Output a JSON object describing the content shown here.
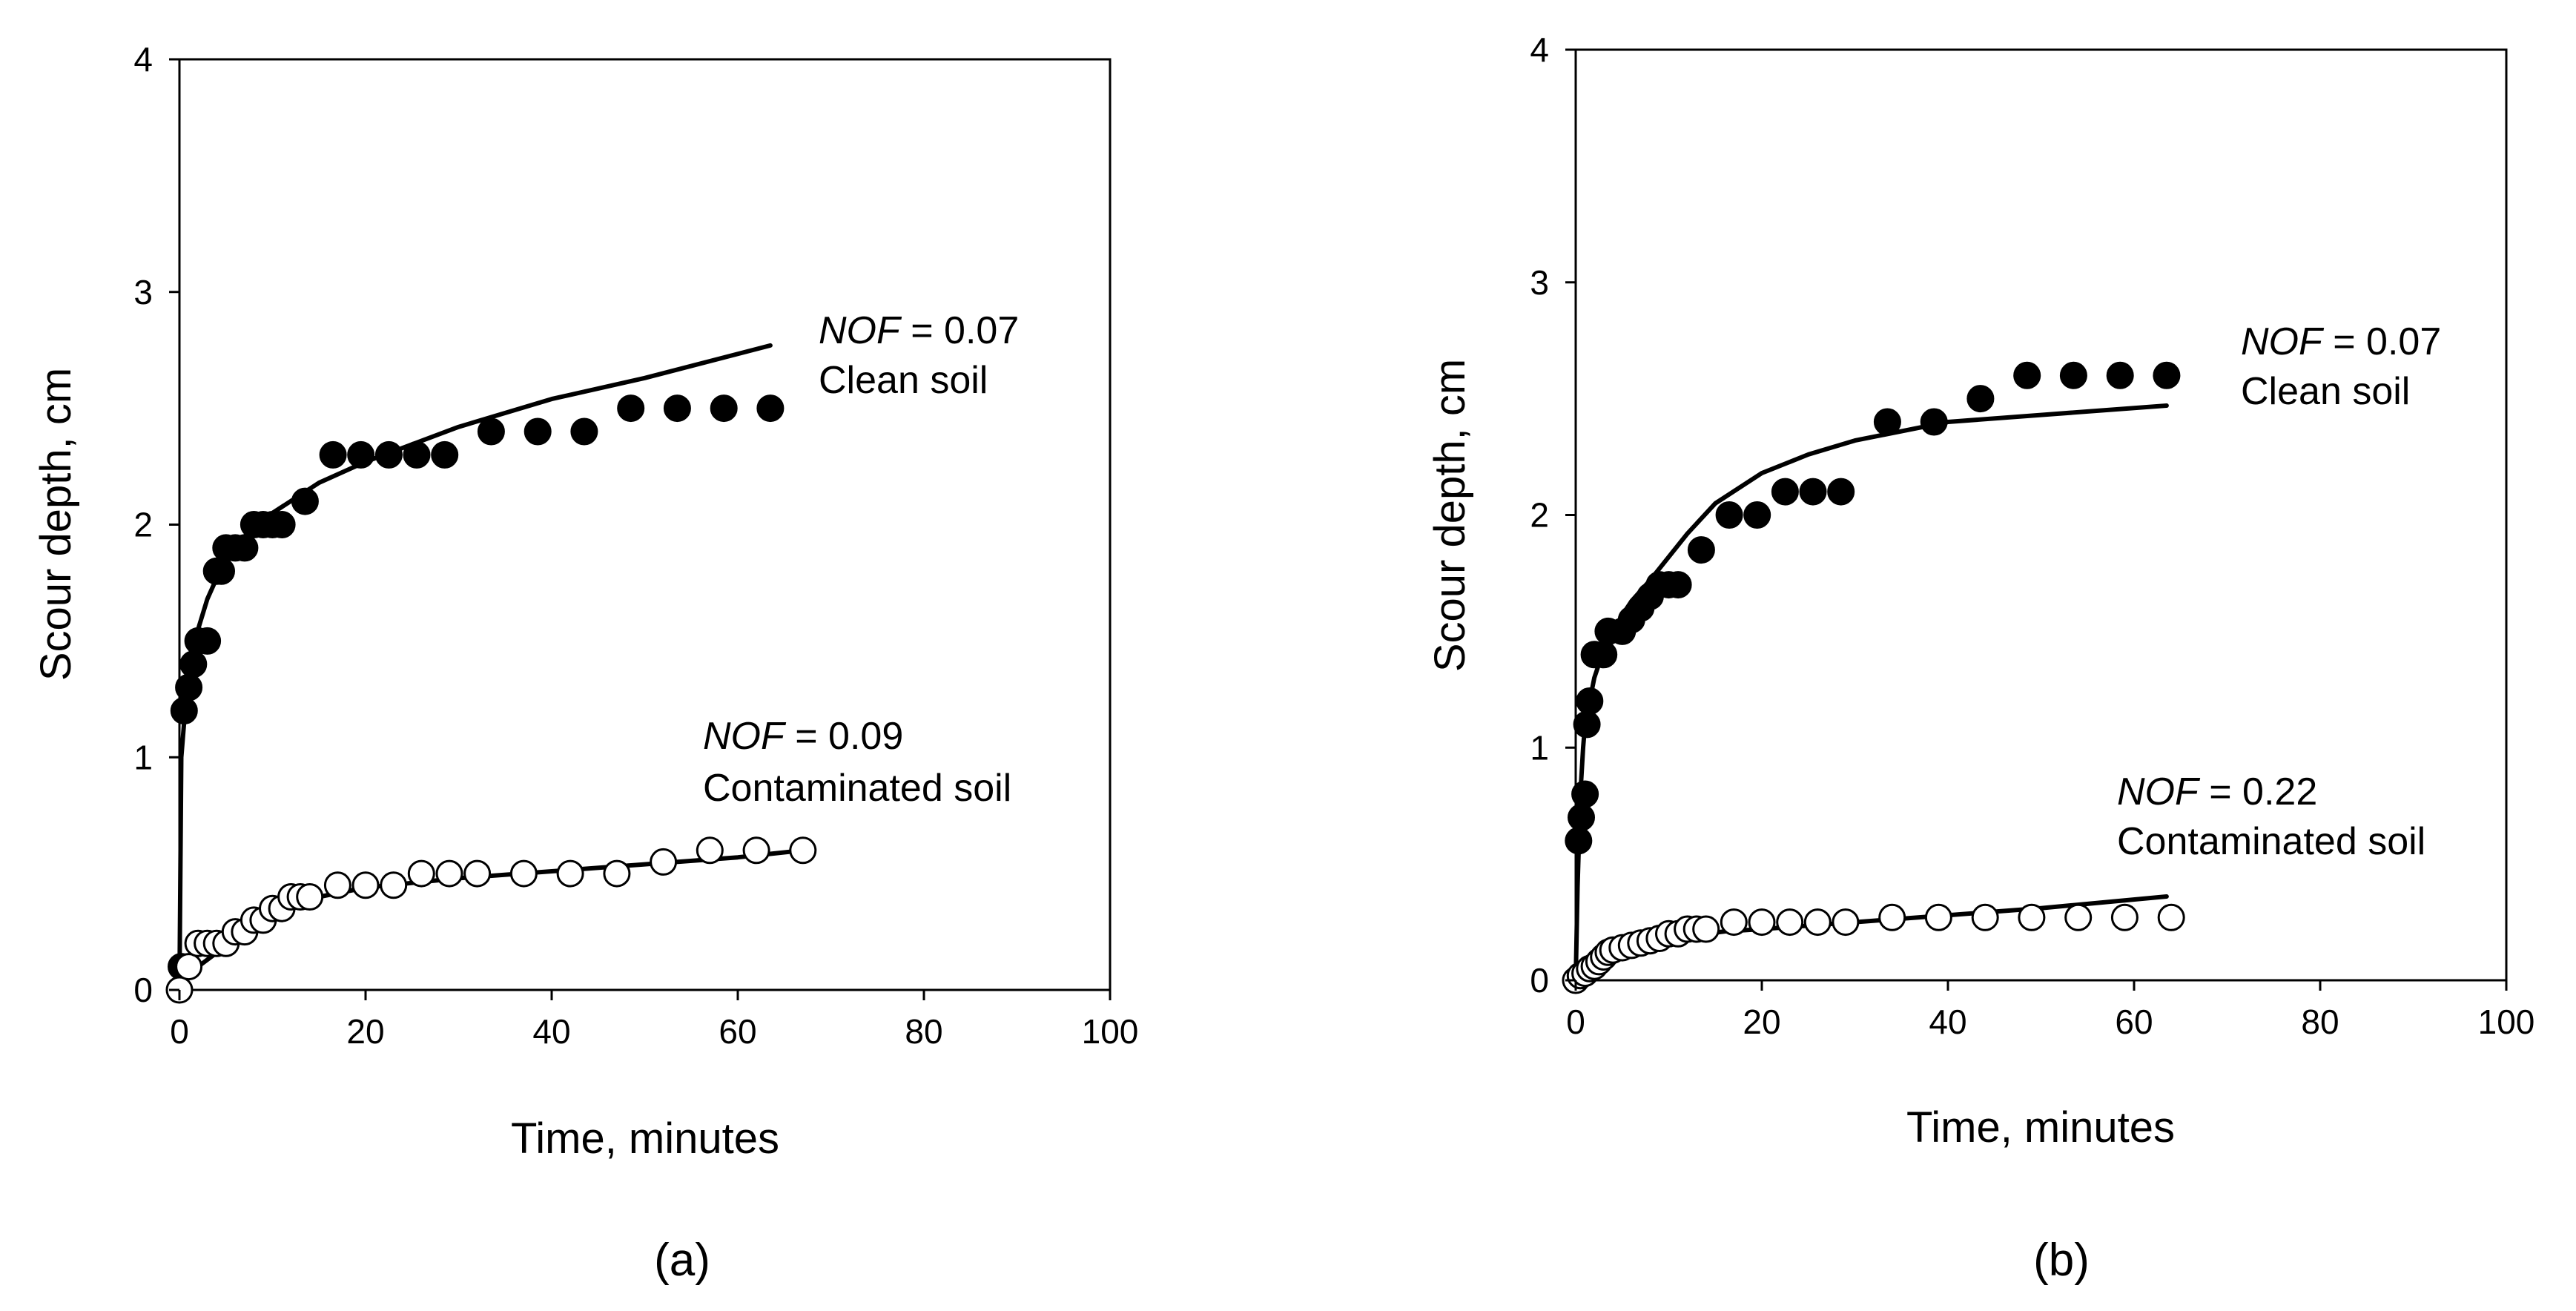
{
  "chart_data": [
    {
      "type": "scatter",
      "panel_label": "(a)",
      "xlabel": "Time, minutes",
      "ylabel": "Scour depth, cm",
      "xlim": [
        0,
        100
      ],
      "ylim": [
        0,
        4
      ],
      "xticks": [
        "0",
        "20",
        "40",
        "60",
        "80",
        "100"
      ],
      "yticks": [
        "0",
        "1",
        "2",
        "3",
        "4"
      ],
      "grid": false,
      "annotations": [
        {
          "nof_label": "NOF",
          "nof_value": " = 0.07",
          "soil": "Clean soil"
        },
        {
          "nof_label": "NOF",
          "nof_value": " = 0.09",
          "soil": "Contaminated soil"
        }
      ],
      "series": [
        {
          "marker": "filled-circle",
          "x": [
            0.2,
            0.5,
            1,
            1.5,
            2,
            3,
            4,
            4.5,
            5,
            6,
            7,
            8,
            9,
            10,
            11,
            13.5,
            16.5,
            19.5,
            22.5,
            25.5,
            28.5,
            33.5,
            38.5,
            43.5,
            48.5,
            53.5,
            58.5,
            63.5
          ],
          "y": [
            0.1,
            1.2,
            1.3,
            1.4,
            1.5,
            1.5,
            1.8,
            1.8,
            1.9,
            1.9,
            1.9,
            2.0,
            2.0,
            2.0,
            2.0,
            2.1,
            2.3,
            2.3,
            2.3,
            2.3,
            2.3,
            2.4,
            2.4,
            2.4,
            2.5,
            2.5,
            2.5,
            2.5
          ]
        },
        {
          "marker": "open-circle",
          "x": [
            0,
            1,
            2,
            3,
            4,
            5,
            6,
            7,
            8,
            9,
            10,
            11,
            12,
            13,
            14,
            17,
            20,
            23,
            26,
            29,
            32,
            37,
            42,
            47,
            52,
            57,
            62,
            67
          ],
          "y": [
            0,
            0.1,
            0.2,
            0.2,
            0.2,
            0.2,
            0.25,
            0.25,
            0.3,
            0.3,
            0.35,
            0.35,
            0.4,
            0.4,
            0.4,
            0.45,
            0.45,
            0.45,
            0.5,
            0.5,
            0.5,
            0.5,
            0.5,
            0.5,
            0.55,
            0.6,
            0.6,
            0.6
          ]
        },
        {
          "marker": "line",
          "x": [
            0,
            0.2,
            0.5,
            0.8,
            1,
            2,
            3,
            4,
            5,
            7,
            10,
            15,
            20,
            30,
            40,
            50,
            63.5
          ],
          "y": [
            0,
            1.0,
            1.15,
            1.28,
            1.35,
            1.55,
            1.68,
            1.77,
            1.84,
            1.95,
            2.05,
            2.18,
            2.27,
            2.42,
            2.54,
            2.63,
            2.77
          ]
        },
        {
          "marker": "line",
          "x": [
            0,
            0.5,
            2,
            4,
            6,
            9,
            12,
            15,
            20,
            25,
            30,
            40,
            50,
            60,
            67
          ],
          "y": [
            0,
            0.04,
            0.1,
            0.16,
            0.22,
            0.3,
            0.36,
            0.4,
            0.44,
            0.46,
            0.48,
            0.51,
            0.54,
            0.57,
            0.6
          ]
        }
      ]
    },
    {
      "type": "scatter",
      "panel_label": "(b)",
      "xlabel": "Time, minutes",
      "ylabel": "Scour depth, cm",
      "xlim": [
        0,
        100
      ],
      "ylim": [
        0,
        4
      ],
      "xticks": [
        "0",
        "20",
        "40",
        "60",
        "80",
        "100"
      ],
      "yticks": [
        "0",
        "1",
        "2",
        "3",
        "4"
      ],
      "grid": false,
      "annotations": [
        {
          "nof_label": "NOF",
          "nof_value": " = 0.07",
          "soil": "Clean soil"
        },
        {
          "nof_label": "NOF",
          "nof_value": " = 0.22",
          "soil": "Contaminated soil"
        }
      ],
      "series": [
        {
          "marker": "filled-circle",
          "x": [
            0.3,
            0.6,
            1,
            1.2,
            1.5,
            2,
            3,
            3.5,
            5,
            6,
            7,
            8,
            9,
            10,
            11,
            13.5,
            16.5,
            19.5,
            22.5,
            25.5,
            28.5,
            33.5,
            38.5,
            43.5,
            48.5,
            53.5,
            58.5,
            63.5
          ],
          "y": [
            0.6,
            0.7,
            0.8,
            1.1,
            1.2,
            1.4,
            1.4,
            1.5,
            1.5,
            1.55,
            1.6,
            1.65,
            1.7,
            1.7,
            1.7,
            1.85,
            2.0,
            2.0,
            2.1,
            2.1,
            2.1,
            2.4,
            2.4,
            2.5,
            2.6,
            2.6,
            2.6,
            2.6
          ]
        },
        {
          "marker": "open-circle",
          "x": [
            0,
            0.5,
            1,
            1.5,
            2,
            2.5,
            3,
            3.5,
            4,
            5,
            6,
            7,
            8,
            9,
            10,
            11,
            12,
            13,
            14,
            17,
            20,
            23,
            26,
            29,
            34,
            39,
            44,
            49,
            54,
            59,
            64
          ],
          "y": [
            0,
            0.02,
            0.03,
            0.05,
            0.06,
            0.08,
            0.1,
            0.12,
            0.13,
            0.14,
            0.15,
            0.16,
            0.17,
            0.18,
            0.2,
            0.2,
            0.22,
            0.22,
            0.22,
            0.25,
            0.25,
            0.25,
            0.25,
            0.25,
            0.27,
            0.27,
            0.27,
            0.27,
            0.27,
            0.27,
            0.27
          ]
        },
        {
          "marker": "line",
          "x": [
            0,
            0.2,
            0.5,
            0.8,
            1,
            2,
            3,
            4,
            5,
            6,
            8,
            10,
            12,
            15,
            20,
            25,
            30,
            40,
            50,
            63.5
          ],
          "y": [
            0,
            0.4,
            0.8,
            1.0,
            1.1,
            1.3,
            1.42,
            1.5,
            1.57,
            1.63,
            1.72,
            1.82,
            1.92,
            2.05,
            2.18,
            2.26,
            2.32,
            2.4,
            2.43,
            2.47
          ]
        },
        {
          "marker": "line",
          "x": [
            0,
            0.5,
            1,
            2,
            3,
            5,
            8,
            12,
            16,
            20,
            30,
            40,
            50,
            63.5
          ],
          "y": [
            0,
            0.02,
            0.04,
            0.07,
            0.1,
            0.13,
            0.16,
            0.19,
            0.21,
            0.22,
            0.25,
            0.28,
            0.31,
            0.36
          ]
        }
      ]
    }
  ]
}
